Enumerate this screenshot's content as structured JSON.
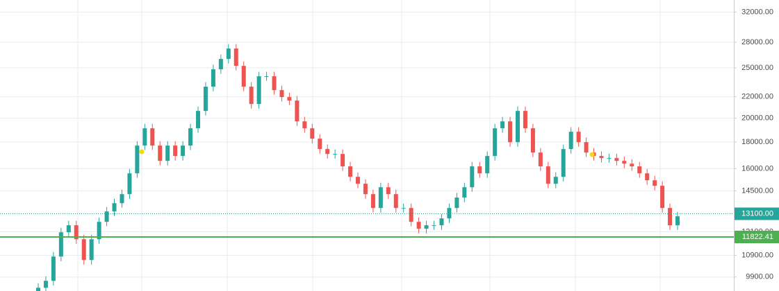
{
  "chart_data": {
    "type": "candlestick",
    "log_scale": true,
    "grid": true,
    "up_color": "#26a69a",
    "down_color": "#ef5350",
    "ylim": [
      9306,
      33760
    ],
    "yticks": [
      {
        "value": 9900,
        "label": "9900.00"
      },
      {
        "value": 10900,
        "label": "10900.00"
      },
      {
        "value": 12100,
        "label": "12100.00"
      },
      {
        "value": 14500,
        "label": "14500.00"
      },
      {
        "value": 16000,
        "label": "16000.00"
      },
      {
        "value": 18000,
        "label": "18000.00"
      },
      {
        "value": 20000,
        "label": "20000.00"
      },
      {
        "value": 22000,
        "label": "22000.00"
      },
      {
        "value": 25000,
        "label": "25000.00"
      },
      {
        "value": 28000,
        "label": "28000.00"
      },
      {
        "value": 32000,
        "label": "32000.00"
      }
    ],
    "price_lines": [
      {
        "value": 13100,
        "label": "13100.00",
        "color": "#26a69a",
        "style": "dotted"
      },
      {
        "value": 11822.41,
        "label": "11822.41",
        "color": "#4caf50",
        "style": "solid"
      }
    ],
    "open": [
      9200,
      9440,
      9735,
      10840,
      12070,
      12450,
      11705,
      10675,
      11705,
      12640,
      13235,
      13730,
      14290,
      15670,
      17720,
      19130,
      17720,
      16560,
      17720,
      16920,
      17720,
      19130,
      20655,
      23000,
      24840,
      26005,
      27230,
      25220,
      23000,
      21300,
      24085,
      24085,
      22650,
      21965,
      21630,
      19725,
      19130,
      18270,
      17450,
      17075,
      17075,
      16160,
      15430,
      14965,
      14290,
      13440,
      14735,
      14290,
      13440,
      13440,
      12640,
      12260,
      12450,
      12450,
      12835,
      13440,
      14075,
      14735,
      16160,
      15670,
      16920,
      19130,
      19725,
      17990,
      20655,
      19130,
      17180,
      16160,
      14965,
      15430,
      17450,
      18840,
      17990,
      17180,
      16920,
      16765,
      16765,
      16560,
      16355,
      16160,
      15670,
      15195,
      14830,
      13440,
      12450
    ],
    "high": [
      9630,
      9930,
      11060,
      12310,
      12700,
      12700,
      11940,
      11940,
      12890,
      13500,
      14000,
      14580,
      15980,
      18070,
      19510,
      19510,
      18070,
      18070,
      18070,
      18070,
      19510,
      21070,
      23460,
      25340,
      26530,
      27770,
      27770,
      25720,
      23460,
      24570,
      24570,
      24570,
      23100,
      22400,
      22060,
      20120,
      19510,
      18640,
      17800,
      17420,
      17420,
      16480,
      15740,
      15260,
      14580,
      15030,
      15030,
      14580,
      13710,
      13710,
      12890,
      12700,
      12700,
      13090,
      13710,
      14360,
      15030,
      16480,
      16480,
      17260,
      19510,
      20120,
      20120,
      21070,
      21070,
      19510,
      17520,
      16480,
      15740,
      17800,
      19220,
      19220,
      18350,
      17520,
      17260,
      17100,
      17100,
      16890,
      16680,
      16480,
      15980,
      15500,
      15130,
      13710,
      13210
    ],
    "low": [
      9020,
      9250,
      9540,
      10620,
      11830,
      11470,
      10460,
      10460,
      11470,
      12390,
      12970,
      13460,
      14000,
      15360,
      17370,
      17370,
      16230,
      16230,
      16580,
      16580,
      17370,
      18750,
      20240,
      22540,
      24340,
      25480,
      24720,
      22540,
      20870,
      20870,
      23600,
      22200,
      21530,
      21200,
      19330,
      18750,
      17900,
      17100,
      16730,
      16730,
      15840,
      15120,
      14670,
      14000,
      13170,
      13170,
      14000,
      13170,
      13170,
      12390,
      12010,
      12010,
      12200,
      12200,
      12580,
      13170,
      13790,
      14440,
      15360,
      15360,
      16580,
      18750,
      17630,
      17630,
      18750,
      16840,
      15840,
      14670,
      14670,
      15120,
      17100,
      17630,
      16840,
      16580,
      16430,
      16430,
      16230,
      16030,
      15840,
      15360,
      14890,
      14530,
      13170,
      12200,
      12200
    ],
    "close": [
      9440,
      9735,
      10840,
      12070,
      12450,
      11705,
      10675,
      11705,
      12640,
      13235,
      13730,
      14290,
      15670,
      17720,
      19130,
      17720,
      16560,
      17720,
      16920,
      17720,
      19130,
      20655,
      23000,
      24840,
      26005,
      27230,
      25220,
      23000,
      21300,
      24085,
      24085,
      22650,
      21965,
      21630,
      19725,
      19130,
      18270,
      17450,
      17075,
      17075,
      16160,
      15430,
      14965,
      14290,
      13440,
      14735,
      14290,
      13440,
      13440,
      12640,
      12260,
      12450,
      12450,
      12835,
      13440,
      14075,
      14735,
      16160,
      15670,
      16920,
      19130,
      19725,
      17990,
      20655,
      19130,
      17180,
      16160,
      14965,
      15430,
      17450,
      18840,
      17990,
      17180,
      16920,
      16765,
      16765,
      16560,
      16355,
      16160,
      15670,
      15195,
      14830,
      13440,
      12450,
      12955
    ]
  }
}
